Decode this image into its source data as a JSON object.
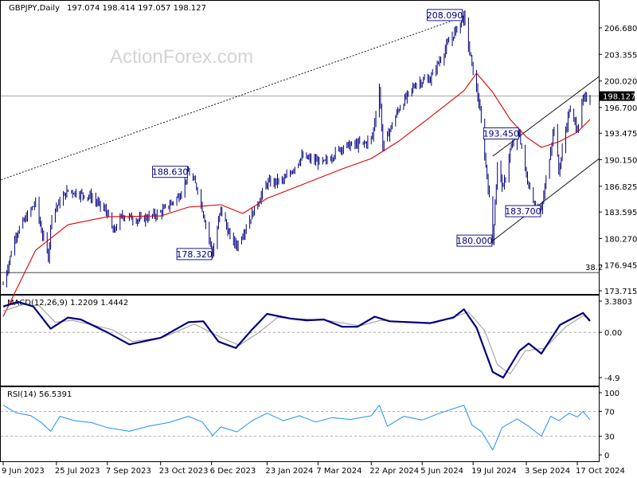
{
  "header": {
    "symbol": "GBPJPY,Daily",
    "ohlc": "197.074 198.414 197.057 198.127"
  },
  "watermark": "ActionForex.com",
  "colors": {
    "candle": "#000080",
    "ma": "#e00000",
    "macd_line": "#000080",
    "signal_line": "#999999",
    "rsi_line": "#1e90ff",
    "trendline": "#000000",
    "price_line": "#888888"
  },
  "chart_data": [
    {
      "type": "candlestick",
      "panel": "price",
      "symbol": "GBPJPY",
      "timeframe": "Daily",
      "current_price": 198.127,
      "ylim": [
        173.715,
        209.5
      ],
      "y_ticks": [
        "206.680",
        "203.355",
        "200.020",
        "196.700",
        "193.475",
        "190.150",
        "186.825",
        "183.595",
        "180.270",
        "176.945",
        "173.715"
      ],
      "x_ticks": [
        "9 Jun 2023",
        "25 Jul 2023",
        "7 Sep 2023",
        "23 Oct 2023",
        "6 Dec 2023",
        "23 Jan 2024",
        "7 Mar 2024",
        "22 Apr 2024",
        "5 Jun 2024",
        "19 Jul 2024",
        "3 Sep 2024",
        "17 Oct 2024"
      ],
      "price_path": [
        [
          "2023-06-09",
          174.5
        ],
        [
          "2023-06-20",
          180.8
        ],
        [
          "2023-07-07",
          184.8
        ],
        [
          "2023-07-12",
          181.3
        ],
        [
          "2023-07-18",
          178.0
        ],
        [
          "2023-07-21",
          183.4
        ],
        [
          "2023-08-04",
          186.3
        ],
        [
          "2023-08-24",
          185.5
        ],
        [
          "2023-09-07",
          183.5
        ],
        [
          "2023-09-12",
          181.0
        ],
        [
          "2023-09-20",
          183.2
        ],
        [
          "2023-10-05",
          182.6
        ],
        [
          "2023-10-23",
          183.5
        ],
        [
          "2023-11-08",
          185.6
        ],
        [
          "2023-11-16",
          188.63
        ],
        [
          "2023-11-24",
          186.5
        ],
        [
          "2023-12-07",
          178.32
        ],
        [
          "2023-12-14",
          184.0
        ],
        [
          "2023-12-22",
          180.4
        ],
        [
          "2023-12-28",
          179.4
        ],
        [
          "2024-01-09",
          183.0
        ],
        [
          "2024-01-23",
          187.2
        ],
        [
          "2024-02-07",
          187.6
        ],
        [
          "2024-02-22",
          190.5
        ],
        [
          "2024-03-12",
          189.7
        ],
        [
          "2024-03-28",
          191.8
        ],
        [
          "2024-04-17",
          192.2
        ],
        [
          "2024-04-23",
          193.0
        ],
        [
          "2024-04-29",
          199.2
        ],
        [
          "2024-05-02",
          191.8
        ],
        [
          "2024-05-16",
          196.6
        ],
        [
          "2024-05-31",
          199.8
        ],
        [
          "2024-06-12",
          200.3
        ],
        [
          "2024-06-27",
          204.6
        ],
        [
          "2024-07-11",
          208.09
        ],
        [
          "2024-07-17",
          202.8
        ],
        [
          "2024-07-24",
          197.3
        ],
        [
          "2024-08-01",
          186.8
        ],
        [
          "2024-08-05",
          180.0
        ],
        [
          "2024-08-09",
          189.5
        ],
        [
          "2024-08-14",
          186.5
        ],
        [
          "2024-08-20",
          191.3
        ],
        [
          "2024-08-28",
          193.45
        ],
        [
          "2024-09-03",
          188.0
        ],
        [
          "2024-09-11",
          184.2
        ],
        [
          "2024-09-16",
          183.7
        ],
        [
          "2024-09-27",
          194.5
        ],
        [
          "2024-10-01",
          188.7
        ],
        [
          "2024-10-10",
          196.4
        ],
        [
          "2024-10-17",
          194.1
        ],
        [
          "2024-10-22",
          197.6
        ],
        [
          "2024-10-28",
          198.127
        ]
      ],
      "ma_path": [
        [
          "2023-06-09",
          170.5
        ],
        [
          "2023-07-07",
          178.8
        ],
        [
          "2023-08-04",
          182.0
        ],
        [
          "2023-09-07",
          183.0
        ],
        [
          "2023-10-23",
          183.1
        ],
        [
          "2023-11-16",
          184.2
        ],
        [
          "2023-12-14",
          184.5
        ],
        [
          "2024-01-02",
          183.4
        ],
        [
          "2024-01-23",
          185.3
        ],
        [
          "2024-02-22",
          187.0
        ],
        [
          "2024-03-28",
          189.0
        ],
        [
          "2024-04-22",
          190.3
        ],
        [
          "2024-05-16",
          192.5
        ],
        [
          "2024-06-12",
          195.5
        ],
        [
          "2024-07-11",
          198.8
        ],
        [
          "2024-07-22",
          201.0
        ],
        [
          "2024-08-05",
          198.6
        ],
        [
          "2024-08-20",
          195.2
        ],
        [
          "2024-09-03",
          193.0
        ],
        [
          "2024-09-16",
          191.7
        ],
        [
          "2024-10-01",
          192.4
        ],
        [
          "2024-10-17",
          193.6
        ],
        [
          "2024-10-28",
          195.2
        ]
      ],
      "annotations": [
        {
          "label": "208.090",
          "date": "2024-07-11",
          "value": 208.09,
          "side": "above-left"
        },
        {
          "label": "188.630",
          "date": "2023-11-16",
          "value": 188.63,
          "side": "left"
        },
        {
          "label": "178.320",
          "date": "2023-12-07",
          "value": 178.32,
          "side": "left"
        },
        {
          "label": "193.450",
          "date": "2024-08-28",
          "value": 193.45,
          "side": "left"
        },
        {
          "label": "183.700",
          "date": "2024-09-16",
          "value": 183.7,
          "side": "left"
        },
        {
          "label": "180.000",
          "date": "2024-08-05",
          "value": 180.0,
          "side": "left"
        }
      ],
      "level_lines": [
        {
          "value": 176.0,
          "label": "38.2"
        }
      ],
      "trendlines": [
        {
          "style": "dotted",
          "from": [
            "2023-05-20",
            186.7
          ],
          "to": [
            "2024-07-11",
            208.09
          ]
        },
        {
          "style": "solid",
          "from": [
            "2024-08-05",
            180.0
          ],
          "to": [
            "2024-11-05",
            190.3
          ]
        },
        {
          "style": "solid",
          "from": [
            "2024-08-05",
            190.6
          ],
          "to": [
            "2024-11-05",
            200.6
          ]
        }
      ]
    },
    {
      "type": "line",
      "panel": "macd",
      "title": "MACD(12,26,9) 1.2209 1.4442",
      "ylim": [
        -5.5,
        4.0
      ],
      "y_ticks": [
        "3.3803",
        "0.00",
        "-4.9"
      ],
      "series": [
        {
          "values": [
            [
              "2023-06-09",
              2.8
            ],
            [
              "2023-06-22",
              3.3
            ],
            [
              "2023-07-05",
              2.8
            ],
            [
              "2023-07-20",
              0.4
            ],
            [
              "2023-08-04",
              1.6
            ],
            [
              "2023-08-15",
              1.4
            ],
            [
              "2023-09-07",
              0.0
            ],
            [
              "2023-09-26",
              -1.3
            ],
            [
              "2023-10-23",
              -0.6
            ],
            [
              "2023-11-16",
              1.1
            ],
            [
              "2023-11-29",
              1.2
            ],
            [
              "2023-12-12",
              -1.0
            ],
            [
              "2023-12-27",
              -1.7
            ],
            [
              "2024-01-10",
              0.3
            ],
            [
              "2024-01-23",
              2.0
            ],
            [
              "2024-02-12",
              1.5
            ],
            [
              "2024-02-26",
              1.3
            ],
            [
              "2024-03-12",
              1.4
            ],
            [
              "2024-03-28",
              0.6
            ],
            [
              "2024-04-10",
              0.6
            ],
            [
              "2024-04-25",
              1.7
            ],
            [
              "2024-05-08",
              1.2
            ],
            [
              "2024-06-12",
              1.0
            ],
            [
              "2024-07-02",
              1.6
            ],
            [
              "2024-07-11",
              2.5
            ],
            [
              "2024-07-22",
              0.5
            ],
            [
              "2024-08-05",
              -4.3
            ],
            [
              "2024-08-14",
              -4.9
            ],
            [
              "2024-08-28",
              -2.0
            ],
            [
              "2024-09-05",
              -1.2
            ],
            [
              "2024-09-16",
              -2.3
            ],
            [
              "2024-10-02",
              0.8
            ],
            [
              "2024-10-11",
              1.4
            ],
            [
              "2024-10-22",
              2.1
            ],
            [
              "2024-10-28",
              1.22
            ]
          ]
        },
        {
          "values": [
            [
              "2023-06-09",
              2.3
            ],
            [
              "2023-06-26",
              3.0
            ],
            [
              "2023-07-10",
              2.9
            ],
            [
              "2023-07-24",
              1.1
            ],
            [
              "2023-08-08",
              1.3
            ],
            [
              "2023-09-11",
              0.3
            ],
            [
              "2023-09-29",
              -1.0
            ],
            [
              "2023-10-26",
              -0.5
            ],
            [
              "2023-11-21",
              0.9
            ],
            [
              "2023-12-15",
              -0.6
            ],
            [
              "2023-12-30",
              -1.4
            ],
            [
              "2024-01-16",
              0.0
            ],
            [
              "2024-02-01",
              1.6
            ],
            [
              "2024-03-15",
              1.3
            ],
            [
              "2024-04-12",
              0.7
            ],
            [
              "2024-04-30",
              1.3
            ],
            [
              "2024-06-15",
              1.0
            ],
            [
              "2024-07-15",
              2.2
            ],
            [
              "2024-07-29",
              0.2
            ],
            [
              "2024-08-09",
              -3.5
            ],
            [
              "2024-08-20",
              -4.5
            ],
            [
              "2024-09-02",
              -2.0
            ],
            [
              "2024-09-19",
              -1.7
            ],
            [
              "2024-10-07",
              0.6
            ],
            [
              "2024-10-22",
              1.8
            ],
            [
              "2024-10-28",
              1.44
            ]
          ]
        }
      ]
    },
    {
      "type": "line",
      "panel": "rsi",
      "title": "RSI(14) 56.5391",
      "ylim": [
        0,
        100
      ],
      "y_ticks": [
        "100",
        "70",
        "30",
        "0"
      ],
      "reference_levels": [
        70,
        30
      ],
      "series": [
        {
          "values": [
            [
              "2023-06-09",
              80
            ],
            [
              "2023-06-20",
              68
            ],
            [
              "2023-07-03",
              63
            ],
            [
              "2023-07-12",
              52
            ],
            [
              "2023-07-20",
              38
            ],
            [
              "2023-07-28",
              62
            ],
            [
              "2023-08-10",
              55
            ],
            [
              "2023-08-24",
              52
            ],
            [
              "2023-09-07",
              44
            ],
            [
              "2023-09-26",
              38
            ],
            [
              "2023-10-12",
              46
            ],
            [
              "2023-10-30",
              52
            ],
            [
              "2023-11-16",
              62
            ],
            [
              "2023-11-28",
              53
            ],
            [
              "2023-12-07",
              31
            ],
            [
              "2023-12-14",
              45
            ],
            [
              "2023-12-28",
              37
            ],
            [
              "2024-01-10",
              55
            ],
            [
              "2024-01-23",
              67
            ],
            [
              "2024-02-06",
              55
            ],
            [
              "2024-02-20",
              63
            ],
            [
              "2024-03-05",
              53
            ],
            [
              "2024-03-19",
              60
            ],
            [
              "2024-04-04",
              57
            ],
            [
              "2024-04-22",
              63
            ],
            [
              "2024-04-29",
              80
            ],
            [
              "2024-05-06",
              46
            ],
            [
              "2024-05-20",
              62
            ],
            [
              "2024-06-05",
              56
            ],
            [
              "2024-06-20",
              67
            ],
            [
              "2024-07-11",
              80
            ],
            [
              "2024-07-18",
              48
            ],
            [
              "2024-07-26",
              38
            ],
            [
              "2024-08-05",
              8
            ],
            [
              "2024-08-13",
              44
            ],
            [
              "2024-08-26",
              58
            ],
            [
              "2024-09-05",
              46
            ],
            [
              "2024-09-16",
              30
            ],
            [
              "2024-09-24",
              62
            ],
            [
              "2024-10-01",
              55
            ],
            [
              "2024-10-10",
              67
            ],
            [
              "2024-10-17",
              61
            ],
            [
              "2024-10-22",
              70
            ],
            [
              "2024-10-28",
              56.5
            ]
          ]
        }
      ]
    }
  ]
}
